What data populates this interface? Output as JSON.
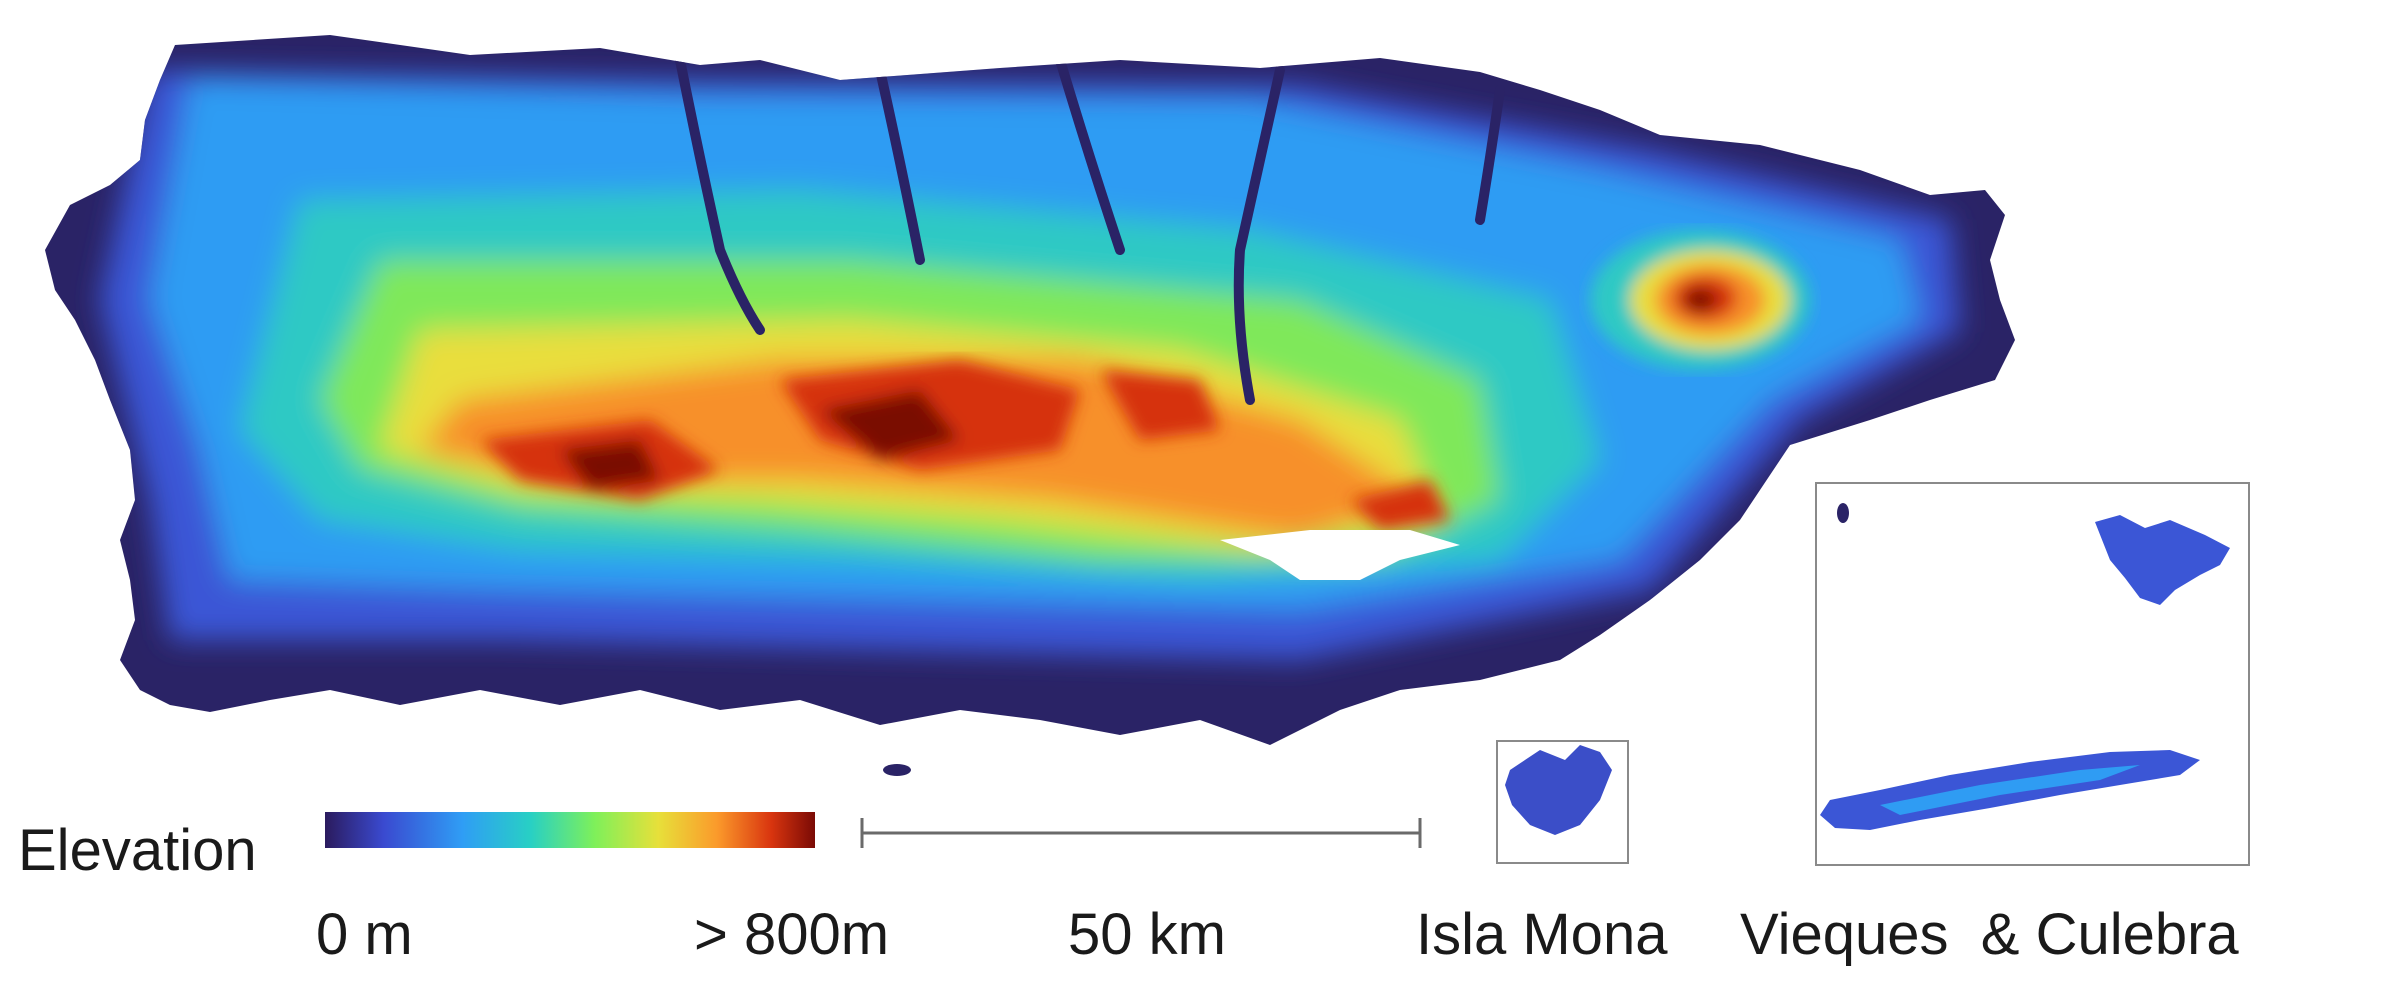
{
  "map": {
    "legend": {
      "title": "Elevation",
      "min_label": "0 m",
      "max_label": "> 800m",
      "colors": [
        "#2b1b5e",
        "#3a4ad0",
        "#2f9df5",
        "#28d0c4",
        "#7ef05a",
        "#e7e03a",
        "#fb9a2b",
        "#d9350f",
        "#7a0a05"
      ]
    },
    "scale_bar": {
      "label": "50 km"
    },
    "insets": {
      "mona": {
        "label": "Isla Mona"
      },
      "vieques_culebra": {
        "label": "Vieques  & Culebra"
      }
    },
    "colors": {
      "lowland": "#2a2366",
      "coast_blue": "#3b56d6",
      "mid_blue": "#2f9cf3",
      "teal": "#2ec9c4",
      "green": "#7fe85a",
      "yellow": "#e9de3c",
      "orange": "#f7902c",
      "red": "#d63010",
      "dark_red": "#7a0906",
      "frame": "#8a8a8a",
      "text": "#1a1a1a"
    }
  }
}
